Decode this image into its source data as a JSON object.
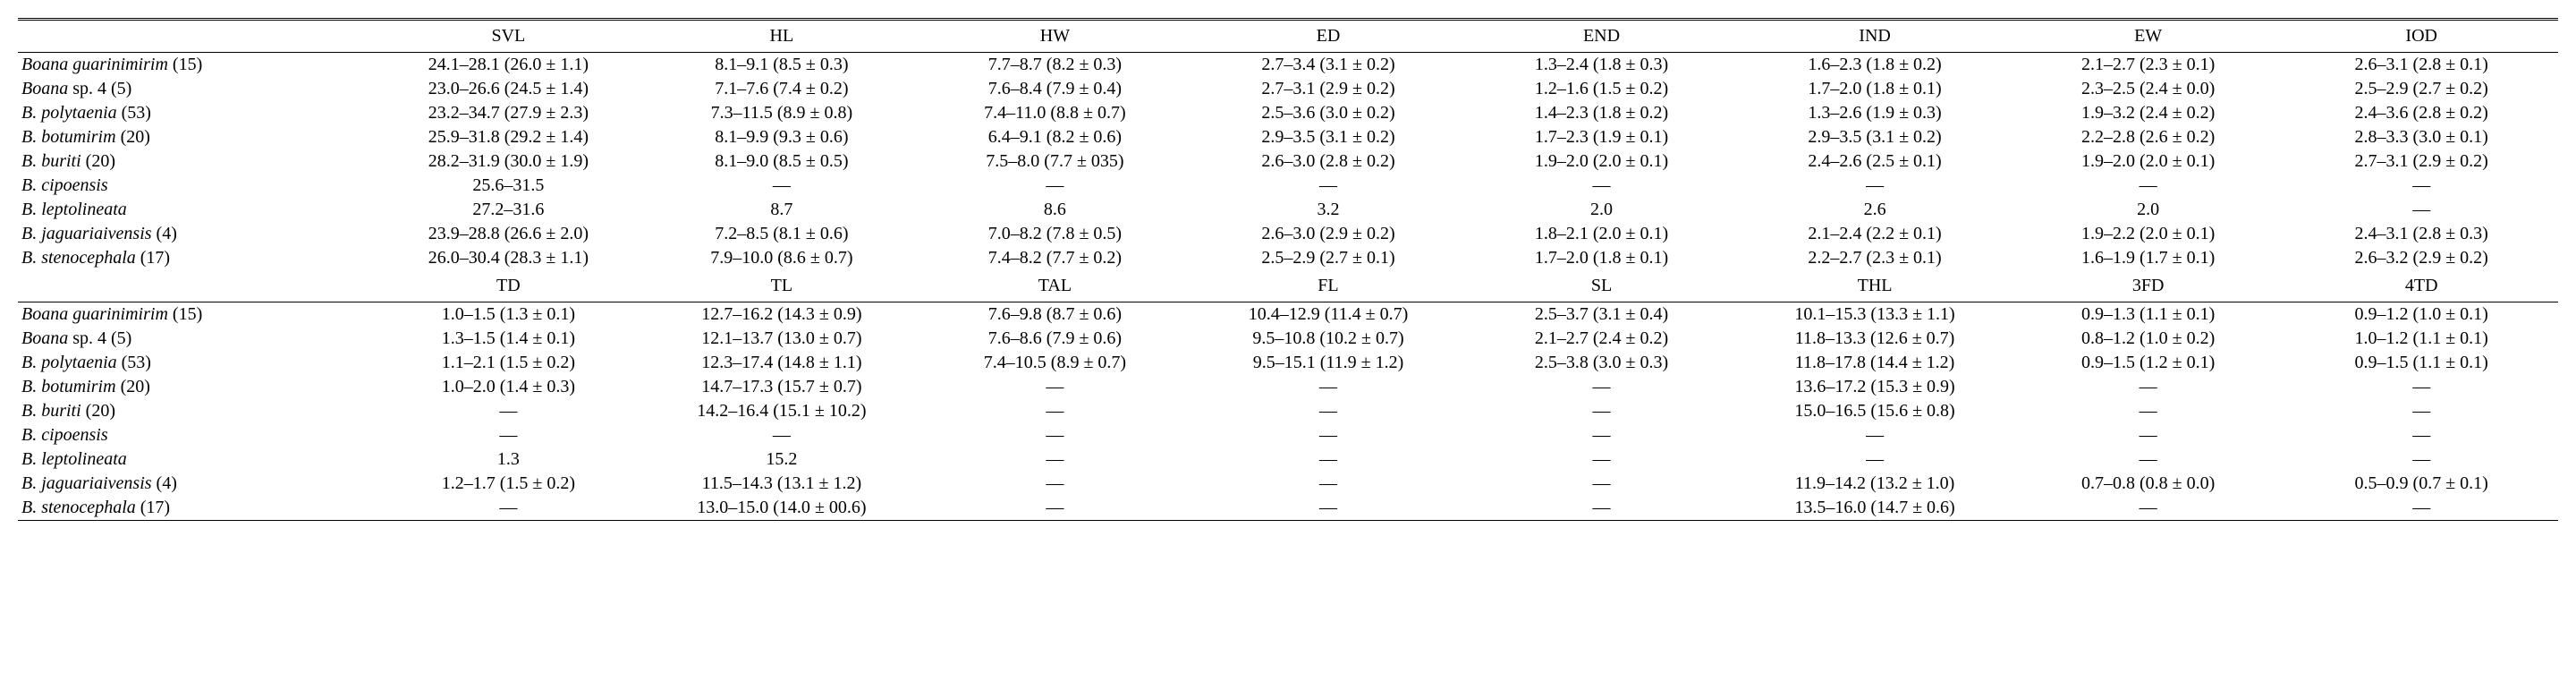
{
  "table": {
    "sections": [
      {
        "columns": [
          "SVL",
          "HL",
          "HW",
          "ED",
          "END",
          "IND",
          "EW",
          "IOD"
        ],
        "rows": [
          {
            "label_italic": "Boana guarinimirim",
            "label_plain": " (15)",
            "cells": [
              "24.1–28.1 (26.0 ± 1.1)",
              "8.1–9.1 (8.5 ± 0.3)",
              "7.7–8.7 (8.2 ± 0.3)",
              "2.7–3.4 (3.1 ± 0.2)",
              "1.3–2.4 (1.8 ± 0.3)",
              "1.6–2.3 (1.8 ± 0.2)",
              "2.1–2.7 (2.3 ± 0.1)",
              "2.6–3.1 (2.8 ± 0.1)"
            ]
          },
          {
            "label_italic": "Boana",
            "label_plain": " sp. 4 (5)",
            "cells": [
              "23.0–26.6 (24.5 ± 1.4)",
              "7.1–7.6 (7.4 ± 0.2)",
              "7.6–8.4 (7.9 ± 0.4)",
              "2.7–3.1 (2.9 ± 0.2)",
              "1.2–1.6 (1.5 ± 0.2)",
              "1.7–2.0 (1.8 ± 0.1)",
              "2.3–2.5 (2.4 ± 0.0)",
              "2.5–2.9 (2.7 ± 0.2)"
            ]
          },
          {
            "label_italic": "B. polytaenia",
            "label_plain": " (53)",
            "cells": [
              "23.2–34.7 (27.9 ± 2.3)",
              "7.3–11.5 (8.9 ± 0.8)",
              "7.4–11.0 (8.8 ± 0.7)",
              "2.5–3.6 (3.0 ± 0.2)",
              "1.4–2.3 (1.8 ± 0.2)",
              "1.3–2.6 (1.9 ± 0.3)",
              "1.9–3.2 (2.4 ± 0.2)",
              "2.4–3.6 (2.8 ± 0.2)"
            ]
          },
          {
            "label_italic": "B. botumirim",
            "label_plain": " (20)",
            "cells": [
              "25.9–31.8 (29.2 ± 1.4)",
              "8.1–9.9 (9.3 ± 0.6)",
              "6.4–9.1 (8.2 ± 0.6)",
              "2.9–3.5 (3.1 ± 0.2)",
              "1.7–2.3 (1.9 ± 0.1)",
              "2.9–3.5 (3.1 ± 0.2)",
              "2.2–2.8 (2.6 ± 0.2)",
              "2.8–3.3 (3.0 ± 0.1)"
            ]
          },
          {
            "label_italic": "B. buriti",
            "label_plain": " (20)",
            "cells": [
              "28.2–31.9 (30.0 ± 1.9)",
              "8.1–9.0 (8.5 ± 0.5)",
              "7.5–8.0 (7.7 ± 035)",
              "2.6–3.0 (2.8 ± 0.2)",
              "1.9–2.0 (2.0 ± 0.1)",
              "2.4–2.6 (2.5 ± 0.1)",
              "1.9–2.0 (2.0 ± 0.1)",
              "2.7–3.1 (2.9 ± 0.2)"
            ]
          },
          {
            "label_italic": "B. cipoensis",
            "label_plain": "",
            "cells": [
              "25.6–31.5",
              "—",
              "—",
              "—",
              "—",
              "—",
              "—",
              "—"
            ]
          },
          {
            "label_italic": "B. leptolineata",
            "label_plain": "",
            "cells": [
              "27.2–31.6",
              "8.7",
              "8.6",
              "3.2",
              "2.0",
              "2.6",
              "2.0",
              "—"
            ]
          },
          {
            "label_italic": "B. jaguariaivensis",
            "label_plain": " (4)",
            "cells": [
              "23.9–28.8 (26.6 ± 2.0)",
              "7.2–8.5 (8.1 ± 0.6)",
              "7.0–8.2 (7.8 ± 0.5)",
              "2.6–3.0 (2.9 ± 0.2)",
              "1.8–2.1 (2.0 ± 0.1)",
              "2.1–2.4 (2.2 ± 0.1)",
              "1.9–2.2 (2.0 ± 0.1)",
              "2.4–3.1 (2.8 ± 0.3)"
            ]
          },
          {
            "label_italic": "B. stenocephala",
            "label_plain": " (17)",
            "cells": [
              "26.0–30.4 (28.3 ± 1.1)",
              "7.9–10.0 (8.6 ± 0.7)",
              "7.4–8.2 (7.7 ± 0.2)",
              "2.5–2.9 (2.7 ± 0.1)",
              "1.7–2.0 (1.8 ± 0.1)",
              "2.2–2.7 (2.3 ± 0.1)",
              "1.6–1.9 (1.7 ± 0.1)",
              "2.6–3.2 (2.9 ± 0.2)"
            ]
          }
        ]
      },
      {
        "columns": [
          "TD",
          "TL",
          "TAL",
          "FL",
          "SL",
          "THL",
          "3FD",
          "4TD"
        ],
        "rows": [
          {
            "label_italic": "Boana guarinimirim",
            "label_plain": " (15)",
            "cells": [
              "1.0–1.5 (1.3 ± 0.1)",
              "12.7–16.2 (14.3 ± 0.9)",
              "7.6–9.8 (8.7 ± 0.6)",
              "10.4–12.9 (11.4 ± 0.7)",
              "2.5–3.7 (3.1 ± 0.4)",
              "10.1–15.3 (13.3 ± 1.1)",
              "0.9–1.3 (1.1 ± 0.1)",
              "0.9–1.2 (1.0 ± 0.1)"
            ]
          },
          {
            "label_italic": "Boana",
            "label_plain": " sp. 4 (5)",
            "cells": [
              "1.3–1.5 (1.4 ± 0.1)",
              "12.1–13.7 (13.0 ± 0.7)",
              "7.6–8.6 (7.9 ± 0.6)",
              "9.5–10.8 (10.2 ± 0.7)",
              "2.1–2.7 (2.4 ± 0.2)",
              "11.8–13.3 (12.6 ± 0.7)",
              "0.8–1.2 (1.0 ± 0.2)",
              "1.0–1.2 (1.1 ± 0.1)"
            ]
          },
          {
            "label_italic": "B. polytaenia",
            "label_plain": " (53)",
            "cells": [
              "1.1–2.1 (1.5 ± 0.2)",
              "12.3–17.4 (14.8 ± 1.1)",
              "7.4–10.5 (8.9 ± 0.7)",
              "9.5–15.1 (11.9 ± 1.2)",
              "2.5–3.8 (3.0 ± 0.3)",
              "11.8–17.8 (14.4 ± 1.2)",
              "0.9–1.5 (1.2 ± 0.1)",
              "0.9–1.5 (1.1 ± 0.1)"
            ]
          },
          {
            "label_italic": "B. botumirim",
            "label_plain": " (20)",
            "cells": [
              "1.0–2.0 (1.4 ± 0.3)",
              "14.7–17.3 (15.7 ± 0.7)",
              "—",
              "—",
              "—",
              "13.6–17.2 (15.3 ± 0.9)",
              "—",
              "—"
            ]
          },
          {
            "label_italic": "B. buriti",
            "label_plain": " (20)",
            "cells": [
              "—",
              "14.2–16.4 (15.1 ± 10.2)",
              "—",
              "—",
              "—",
              "15.0–16.5 (15.6 ± 0.8)",
              "—",
              "—"
            ]
          },
          {
            "label_italic": "B. cipoensis",
            "label_plain": "",
            "cells": [
              "—",
              "—",
              "—",
              "—",
              "—",
              "—",
              "—",
              "—"
            ]
          },
          {
            "label_italic": "B. leptolineata",
            "label_plain": "",
            "cells": [
              "1.3",
              "15.2",
              "—",
              "—",
              "—",
              "—",
              "—",
              "—"
            ]
          },
          {
            "label_italic": "B. jaguariaivensis",
            "label_plain": " (4)",
            "cells": [
              "1.2–1.7 (1.5 ± 0.2)",
              "11.5–14.3 (13.1 ± 1.2)",
              "—",
              "—",
              "—",
              "11.9–14.2 (13.2 ± 1.0)",
              "0.7–0.8 (0.8 ± 0.0)",
              "0.5–0.9 (0.7 ± 0.1)"
            ]
          },
          {
            "label_italic": "B. stenocephala",
            "label_plain": " (17)",
            "cells": [
              "—",
              "13.0–15.0 (14.0 ± 00.6)",
              "—",
              "—",
              "—",
              "13.5–16.0 (14.7 ± 0.6)",
              "—",
              "—"
            ]
          }
        ]
      }
    ]
  }
}
